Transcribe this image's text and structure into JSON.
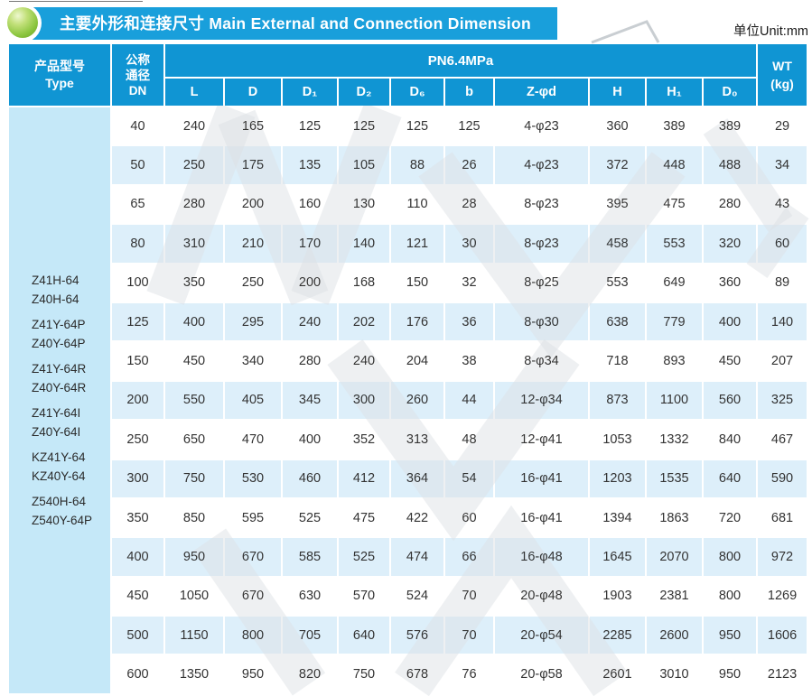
{
  "page": {
    "unit_label": "单位Unit:mm"
  },
  "banner": {
    "title": "主要外形和连接尺寸 Main External and Connection Dimension"
  },
  "colors": {
    "banner_blue": "#199fdb",
    "table_header_blue": "#1095d3",
    "row_stripe_blue": "#ddeffa",
    "type_column_blue": "#c5e8f8",
    "bullet_green": "#8cc63f"
  },
  "table": {
    "header": {
      "type_zh": "产品型号",
      "type_en": "Type",
      "dn_lines": [
        "公称",
        "通径",
        "DN"
      ],
      "pn_label": "PN6.4MPa",
      "wt_lines": [
        "WT",
        "(kg)"
      ],
      "dim_columns": [
        "L",
        "D",
        "D₁",
        "D₂",
        "D₆",
        "b",
        "Z-φd",
        "H",
        "H₁",
        "D₀"
      ]
    },
    "type_groups": [
      [
        "Z41H-64",
        "Z40H-64"
      ],
      [
        "Z41Y-64P",
        "Z40Y-64P"
      ],
      [
        "Z41Y-64R",
        "Z40Y-64R"
      ],
      [
        "Z41Y-64I",
        "Z40Y-64I"
      ],
      [
        "KZ41Y-64",
        "KZ40Y-64"
      ],
      [
        "Z540H-64",
        "Z540Y-64P"
      ]
    ],
    "rows": [
      [
        "40",
        "240",
        "165",
        "125",
        "125",
        "125",
        "125",
        "4-φ23",
        "360",
        "389",
        "389",
        "29"
      ],
      [
        "50",
        "250",
        "175",
        "135",
        "105",
        "88",
        "26",
        "4-φ23",
        "372",
        "448",
        "488",
        "34"
      ],
      [
        "65",
        "280",
        "200",
        "160",
        "130",
        "110",
        "28",
        "8-φ23",
        "395",
        "475",
        "280",
        "43"
      ],
      [
        "80",
        "310",
        "210",
        "170",
        "140",
        "121",
        "30",
        "8-φ23",
        "458",
        "553",
        "320",
        "60"
      ],
      [
        "100",
        "350",
        "250",
        "200",
        "168",
        "150",
        "32",
        "8-φ25",
        "553",
        "649",
        "360",
        "89"
      ],
      [
        "125",
        "400",
        "295",
        "240",
        "202",
        "176",
        "36",
        "8-φ30",
        "638",
        "779",
        "400",
        "140"
      ],
      [
        "150",
        "450",
        "340",
        "280",
        "240",
        "204",
        "38",
        "8-φ34",
        "718",
        "893",
        "450",
        "207"
      ],
      [
        "200",
        "550",
        "405",
        "345",
        "300",
        "260",
        "44",
        "12-φ34",
        "873",
        "1100",
        "560",
        "325"
      ],
      [
        "250",
        "650",
        "470",
        "400",
        "352",
        "313",
        "48",
        "12-φ41",
        "1053",
        "1332",
        "840",
        "467"
      ],
      [
        "300",
        "750",
        "530",
        "460",
        "412",
        "364",
        "54",
        "16-φ41",
        "1203",
        "1535",
        "640",
        "590"
      ],
      [
        "350",
        "850",
        "595",
        "525",
        "475",
        "422",
        "60",
        "16-φ41",
        "1394",
        "1863",
        "720",
        "681"
      ],
      [
        "400",
        "950",
        "670",
        "585",
        "525",
        "474",
        "66",
        "16-φ48",
        "1645",
        "2070",
        "800",
        "972"
      ],
      [
        "450",
        "1050",
        "670",
        "630",
        "570",
        "524",
        "70",
        "20-φ48",
        "1903",
        "2381",
        "800",
        "1269"
      ],
      [
        "500",
        "1150",
        "800",
        "705",
        "640",
        "576",
        "70",
        "20-φ54",
        "2285",
        "2600",
        "950",
        "1606"
      ],
      [
        "600",
        "1350",
        "950",
        "820",
        "750",
        "678",
        "76",
        "20-φ58",
        "2601",
        "3010",
        "950",
        "2123"
      ]
    ]
  }
}
